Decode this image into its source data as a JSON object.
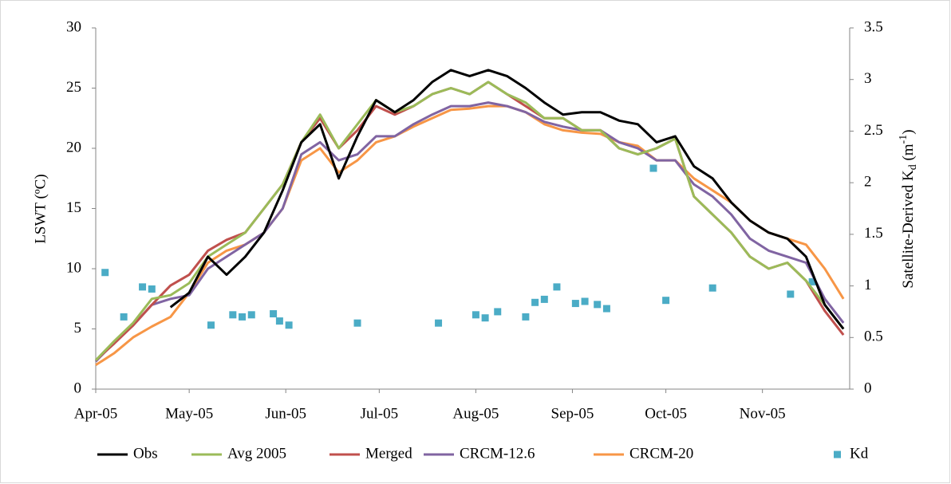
{
  "chart_data": {
    "type": "line",
    "ylabel": "LSWT (ºC)",
    "y2label_parts": [
      "Satellite-Derived K",
      "d",
      " (m",
      "-1",
      ")"
    ],
    "xlim": [
      0,
      242
    ],
    "xticks": [
      {
        "value": 0,
        "label": "Apr-05"
      },
      {
        "value": 30,
        "label": "May-05"
      },
      {
        "value": 61,
        "label": "Jun-05"
      },
      {
        "value": 91,
        "label": "Jul-05"
      },
      {
        "value": 122,
        "label": "Aug-05"
      },
      {
        "value": 153,
        "label": "Sep-05"
      },
      {
        "value": 183,
        "label": "Oct-05"
      },
      {
        "value": 214,
        "label": "Nov-05"
      }
    ],
    "ylim": [
      0,
      30
    ],
    "yticks": [
      0,
      5,
      10,
      15,
      20,
      25,
      30
    ],
    "y2lim": [
      0,
      3.5
    ],
    "y2ticks": [
      0,
      0.5,
      1,
      1.5,
      2,
      2.5,
      3,
      3.5
    ],
    "grid": false,
    "legend": "bottom",
    "x": [
      0,
      6,
      12,
      18,
      24,
      30,
      36,
      42,
      48,
      54,
      60,
      66,
      72,
      78,
      84,
      90,
      96,
      102,
      108,
      114,
      120,
      126,
      132,
      138,
      144,
      150,
      156,
      162,
      168,
      174,
      180,
      186,
      192,
      198,
      204,
      210,
      216,
      222,
      228,
      234,
      240
    ],
    "series": [
      {
        "name": "Obs",
        "color": "#000000",
        "values": [
          null,
          null,
          null,
          null,
          6.8,
          8,
          11,
          9.5,
          11,
          13,
          16.5,
          20.5,
          22,
          17.5,
          21,
          24,
          23,
          24,
          25.5,
          26.5,
          26,
          26.5,
          26,
          25,
          23.8,
          22.8,
          23,
          23,
          22.3,
          22,
          20.5,
          21,
          18.5,
          17.5,
          15.5,
          14,
          13,
          12.5,
          11,
          7,
          5
        ]
      },
      {
        "name": "Avg 2005",
        "color": "#9bbb59",
        "values": [
          2.4,
          4,
          5.5,
          7.5,
          7.8,
          8.8,
          11,
          12,
          13,
          15,
          17,
          20.5,
          22.8,
          20,
          22,
          24,
          23,
          23.5,
          24.5,
          25,
          24.5,
          25.5,
          24.5,
          23.8,
          22.5,
          22.5,
          21.5,
          21.5,
          20,
          19.5,
          20,
          20.8,
          16,
          14.5,
          13,
          11,
          10,
          10.5,
          9,
          7,
          5
        ]
      },
      {
        "name": "Merged",
        "color": "#c0504d",
        "values": [
          2.4,
          3.8,
          5.3,
          7,
          8.6,
          9.5,
          11.5,
          12.4,
          13,
          15,
          17,
          20.5,
          22.5,
          20,
          21.5,
          23.5,
          22.8,
          23.5,
          24.5,
          25,
          24.5,
          25.5,
          24.5,
          23.5,
          22.5,
          22.5,
          21.5,
          21.5,
          20,
          19.5,
          20,
          20.8,
          16,
          14.5,
          13,
          11,
          10,
          10.5,
          9,
          6.5,
          4.5
        ]
      },
      {
        "name": "CRCM-12.6",
        "color": "#8064a2",
        "values": [
          2.3,
          3.9,
          5.3,
          7,
          7.5,
          7.8,
          10,
          11,
          12,
          13,
          15,
          19.5,
          20.5,
          19,
          19.5,
          21,
          21,
          22,
          22.8,
          23.5,
          23.5,
          23.8,
          23.5,
          23,
          22.2,
          21.8,
          21.5,
          21.5,
          20.5,
          20,
          19,
          19,
          17,
          16,
          14.5,
          12.5,
          11.5,
          11,
          10.5,
          7.5,
          5.5
        ]
      },
      {
        "name": "CRCM-20",
        "color": "#f79646",
        "values": [
          2,
          3,
          4.3,
          5.2,
          6,
          8,
          10.5,
          11.5,
          12,
          13,
          15,
          19,
          20,
          18,
          19,
          20.5,
          21,
          21.8,
          22.5,
          23.2,
          23.3,
          23.5,
          23.5,
          23,
          22,
          21.5,
          21.3,
          21.2,
          20.5,
          20.2,
          19,
          19,
          17.5,
          16.5,
          15.5,
          14,
          13,
          12.5,
          12,
          10,
          7.5
        ]
      },
      {
        "name": "Kd",
        "color": "#4bacc6",
        "axis": "y2",
        "marker": "square",
        "x": [
          3,
          9,
          15,
          18,
          37,
          44,
          47,
          50,
          57,
          59,
          62,
          84,
          110,
          122,
          125,
          129,
          138,
          141,
          144,
          148,
          154,
          157,
          161,
          164,
          179,
          183,
          198,
          223,
          230
        ],
        "values": [
          1.13,
          0.7,
          0.99,
          0.97,
          0.62,
          0.72,
          0.7,
          0.72,
          0.73,
          0.66,
          0.62,
          0.64,
          0.64,
          0.72,
          0.69,
          0.75,
          0.7,
          0.84,
          0.87,
          0.99,
          0.83,
          0.85,
          0.82,
          0.78,
          2.14,
          0.86,
          0.98,
          0.92,
          1.04
        ]
      }
    ]
  }
}
